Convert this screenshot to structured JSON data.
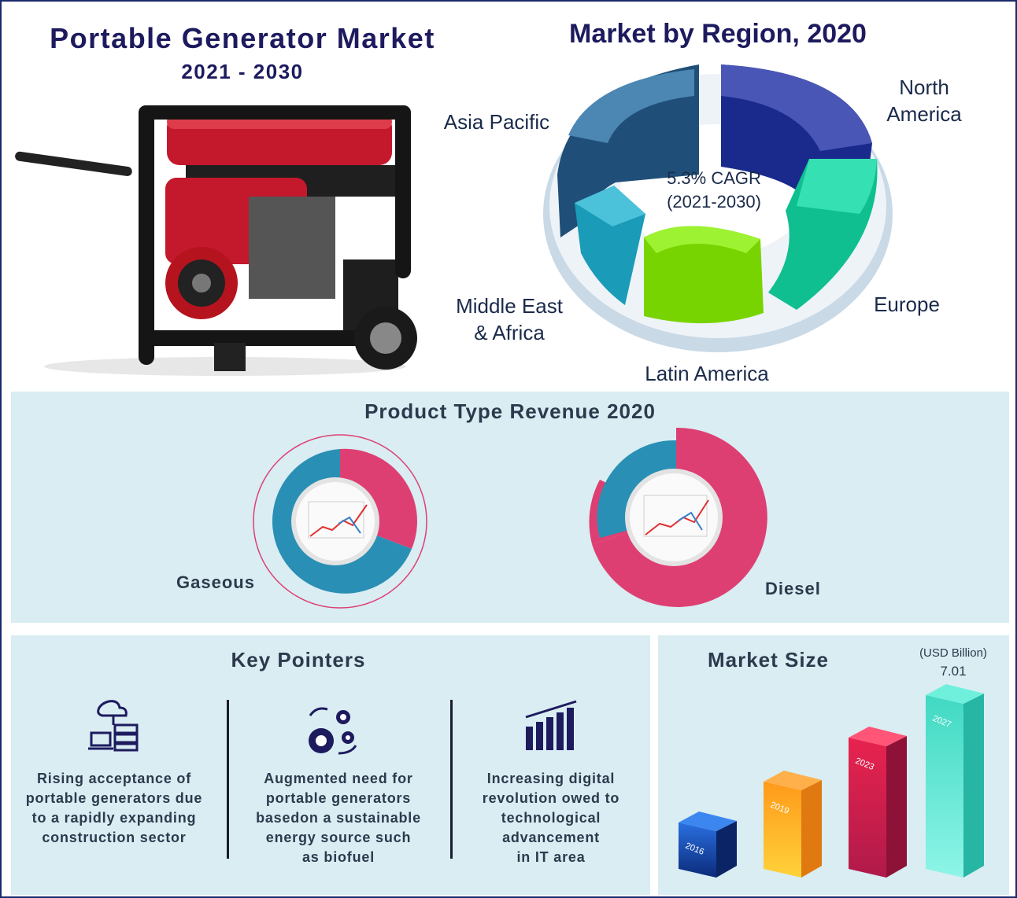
{
  "header": {
    "title": "Portable Generator Market",
    "subtitle": "2021 - 2030"
  },
  "region_chart": {
    "title": "Market by Region, 2020",
    "center_line1": "5.3% CAGR",
    "center_line2": "(2021-2030)",
    "labels": {
      "north_america_1": "North",
      "north_america_2": "America",
      "europe": "Europe",
      "latin_america": "Latin America",
      "mea_1": "Middle East",
      "mea_2": "& Africa",
      "asia_pacific": "Asia Pacific"
    },
    "colors": {
      "north_america": "#1a2a8c",
      "europe": "#0fbf8f",
      "latin_america": "#78d400",
      "mea": "#1a9bb8",
      "asia_pacific": "#1f4f78"
    }
  },
  "product_type": {
    "title": "Product Type Revenue 2020",
    "gaseous_label": "Gaseous",
    "diesel_label": "Diesel",
    "colors": {
      "pink": "#de3f72",
      "blue": "#2a8fb5"
    }
  },
  "key_pointers": {
    "title": "Key Pointers",
    "items": [
      {
        "icon": "cloud-server-icon",
        "lines": [
          "Rising acceptance of",
          "portable generators due",
          "to a rapidly expanding",
          "construction sector"
        ]
      },
      {
        "icon": "gears-icon",
        "lines": [
          "Augmented need for",
          "portable generators",
          "basedon a sustainable",
          "energy source such",
          "as biofuel"
        ]
      },
      {
        "icon": "bar-chart-icon",
        "lines": [
          "Increasing digital",
          "revolution owed to",
          "technological",
          "advancement",
          "in IT area"
        ]
      }
    ]
  },
  "market_size": {
    "title": "Market Size",
    "unit": "(USD Billion)",
    "value_label": "7.01"
  },
  "chart_data": [
    {
      "type": "pie",
      "title": "Market by Region, 2020",
      "categories": [
        "North America",
        "Europe",
        "Latin America",
        "Middle East & Africa",
        "Asia Pacific"
      ]
    },
    {
      "type": "pie",
      "title": "Product Type Revenue 2020",
      "categories": [
        "Gaseous",
        "Diesel"
      ]
    },
    {
      "type": "bar",
      "title": "Market Size",
      "ylabel": "(USD Billion)",
      "categories": [
        "2016",
        "2019",
        "2023",
        "2027"
      ],
      "values": [
        null,
        null,
        null,
        7.01
      ]
    }
  ]
}
